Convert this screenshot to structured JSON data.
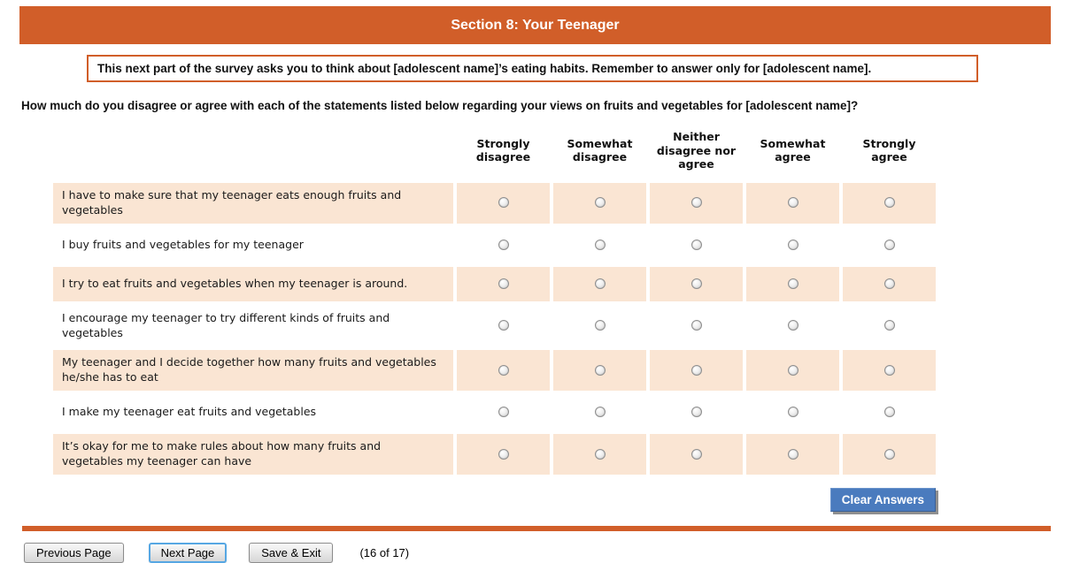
{
  "header": {
    "title": "Section 8: Your Teenager"
  },
  "instruction": "This next part of the survey asks you to think about [adolescent name]’s eating habits. Remember to answer only for [adolescent name].",
  "question": "How much do you disagree or agree with each of the statements listed below regarding your views on fruits and vegetables for [adolescent name]?",
  "likert": {
    "options": [
      "Strongly disagree",
      "Somewhat disagree",
      "Neither disagree nor agree",
      "Somewhat agree",
      "Strongly agree"
    ],
    "statements": [
      "I have to make sure that my teenager eats enough fruits and vegetables",
      "I buy fruits and vegetables for my teenager",
      "I try to eat fruits and vegetables when my teenager is around.",
      "I encourage my teenager to try different kinds of fruits and vegetables",
      "My teenager and I decide together how many fruits and vegetables he/she has to eat",
      "I make my teenager eat fruits and vegetables",
      "It’s okay for me to make rules about how many fruits and vegetables my teenager can have"
    ],
    "selections": [
      null,
      null,
      null,
      null,
      null,
      null,
      null
    ]
  },
  "buttons": {
    "clear": "Clear Answers",
    "previous": "Previous Page",
    "next": "Next Page",
    "save_exit": "Save & Exit"
  },
  "page_indicator": "(16 of 17)",
  "colors": {
    "accent_orange": "#d15e29",
    "row_highlight": "#fae5d3",
    "clear_button_blue": "#4a7bbe",
    "focus_ring_blue": "#56a7e3"
  }
}
